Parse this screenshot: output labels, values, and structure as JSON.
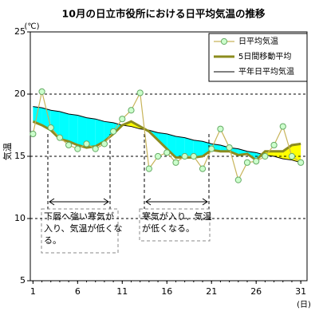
{
  "chart_data": {
    "type": "line",
    "title": "10月の日立市役所における日平均気温の推移",
    "y_label": "気温",
    "y_unit": "(℃)",
    "x_unit": "(日)",
    "x": [
      1,
      2,
      3,
      4,
      5,
      6,
      7,
      8,
      9,
      10,
      11,
      12,
      13,
      14,
      15,
      16,
      17,
      18,
      19,
      20,
      21,
      22,
      23,
      24,
      25,
      26,
      27,
      28,
      29,
      30,
      31
    ],
    "xlim": [
      0.7,
      31.7
    ],
    "xticks": [
      1,
      6,
      11,
      16,
      21,
      26,
      31
    ],
    "ylim": [
      5,
      25
    ],
    "yticks": [
      5,
      10,
      15,
      20,
      25
    ],
    "grid": true,
    "legend": "upper right",
    "below_color": "#00ffff",
    "above_color": "#ffff00",
    "series": [
      {
        "name": "日平均気温",
        "color": "#c8b45a",
        "marker_color": "#ccffcc",
        "marker_edge": "#66aa66",
        "values": [
          16.8,
          20.2,
          17.3,
          16.5,
          15.9,
          15.6,
          16.0,
          15.6,
          16.0,
          17.0,
          18.0,
          18.7,
          20.1,
          14.0,
          15.0,
          15.3,
          14.5,
          15.0,
          15.0,
          14.0,
          15.6,
          17.2,
          15.7,
          13.1,
          14.5,
          14.6,
          15.0,
          15.9,
          17.4,
          15.0,
          14.5
        ]
      },
      {
        "name": "5日間移動平均",
        "color": "#8c8c1e",
        "values": [
          17.8,
          17.5,
          17.1,
          16.4,
          16.2,
          15.9,
          15.7,
          15.8,
          16.2,
          16.8,
          17.5,
          17.8,
          17.4,
          17.0,
          16.3,
          15.6,
          14.9,
          14.9,
          14.9,
          15.0,
          15.5,
          15.4,
          15.4,
          15.1,
          15.2,
          14.7,
          15.4,
          15.4,
          15.4,
          15.9,
          16.0
        ]
      },
      {
        "name": "平年日平均気温",
        "color": "#000000",
        "values": [
          19.0,
          18.9,
          18.7,
          18.6,
          18.4,
          18.3,
          18.1,
          18.0,
          17.8,
          17.7,
          17.5,
          17.4,
          17.2,
          17.1,
          16.9,
          16.8,
          16.6,
          16.5,
          16.3,
          16.2,
          16.0,
          15.9,
          15.7,
          15.6,
          15.4,
          15.3,
          15.1,
          15.0,
          14.8,
          14.7,
          14.5
        ]
      }
    ],
    "annotations": [
      {
        "lines": [
          "下層へ強い寒気が",
          "入り、気温が低くな",
          "る。"
        ]
      },
      {
        "lines": [
          "寒気が入り、気温",
          "が低くなる。"
        ]
      }
    ]
  }
}
